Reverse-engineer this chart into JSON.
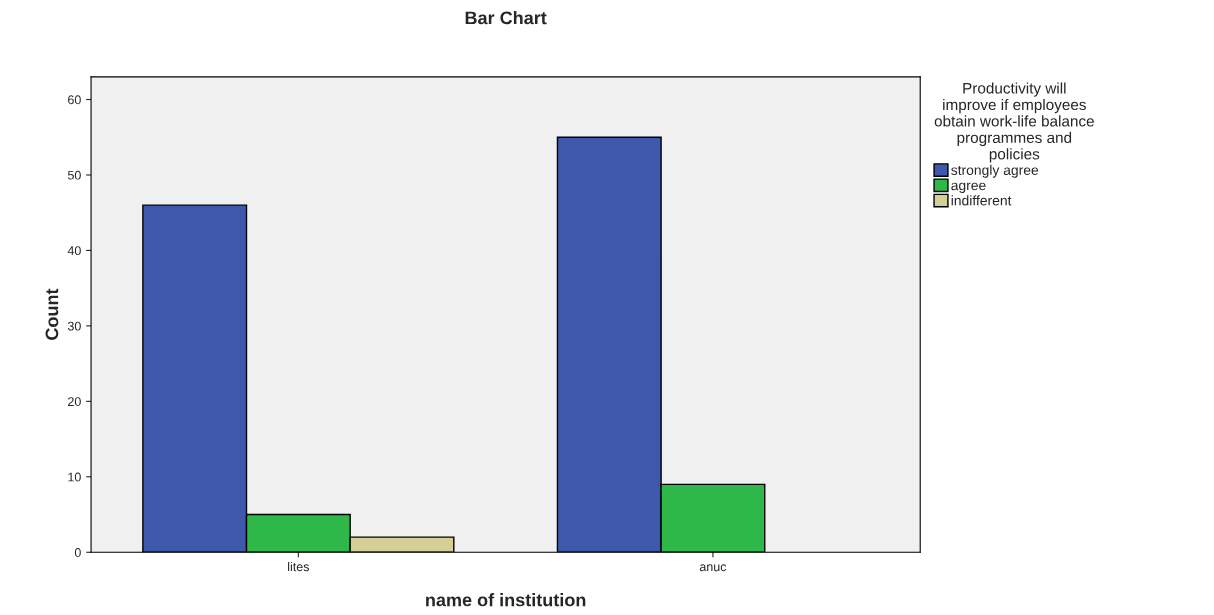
{
  "chart_data": {
    "type": "bar",
    "title": "Bar Chart",
    "xlabel": "name of institution",
    "ylabel": "Count",
    "categories": [
      "lites",
      "anuc"
    ],
    "legend_title": "Productivity will\nimprove if employees\nobtain work-life balance\nprogrammes and\npolicies",
    "series": [
      {
        "name": "strongly agree",
        "color": "#3e58ac",
        "values": [
          46,
          55
        ]
      },
      {
        "name": "agree",
        "color": "#2fb84a",
        "values": [
          5,
          9
        ]
      },
      {
        "name": "indifferent",
        "color": "#d4cf96",
        "values": [
          2,
          null
        ]
      }
    ],
    "ylim": [
      0,
      63
    ],
    "yticks": [
      0,
      10,
      20,
      30,
      40,
      50,
      60
    ],
    "grid": false,
    "legend": "right"
  }
}
